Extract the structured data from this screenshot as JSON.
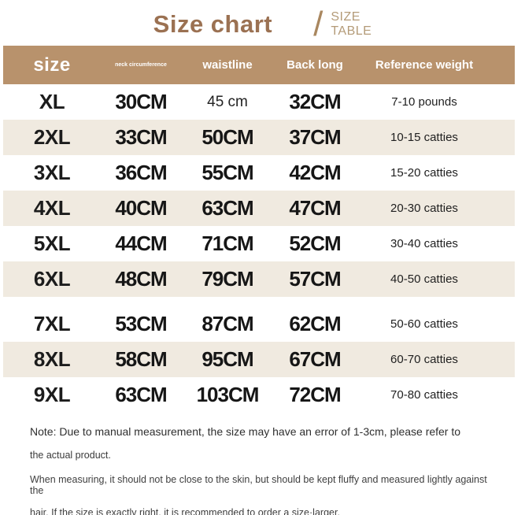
{
  "page": {
    "title": "Size chart",
    "slash": "/",
    "subtitle_line1": "SIZE",
    "subtitle_line2": "TABLE"
  },
  "colors": {
    "title_brown": "#9b7152",
    "subtitle_tan": "#b49b78",
    "header_bg": "#b8926c",
    "header_text": "#ffffff",
    "row_alt_bg": "#f0eae0",
    "data_text": "#161616"
  },
  "table": {
    "headers": {
      "size": "size",
      "neck": "neck circumference",
      "waistline": "waistline",
      "back_long": "Back long",
      "reference_weight": "Reference weight"
    },
    "rows": [
      {
        "size": "XL",
        "neck": "30CM",
        "waistline": "45 cm",
        "back_long": "32CM",
        "weight": "7-10 pounds"
      },
      {
        "size": "2XL",
        "neck": "33CM",
        "waistline": "50CM",
        "back_long": "37CM",
        "weight": "10-15 catties"
      },
      {
        "size": "3XL",
        "neck": "36CM",
        "waistline": "55CM",
        "back_long": "42CM",
        "weight": "15-20 catties"
      },
      {
        "size": "4XL",
        "neck": "40CM",
        "waistline": "63CM",
        "back_long": "47CM",
        "weight": "20-30 catties"
      },
      {
        "size": "5XL",
        "neck": "44CM",
        "waistline": "71CM",
        "back_long": "52CM",
        "weight": "30-40 catties"
      },
      {
        "size": "6XL",
        "neck": "48CM",
        "waistline": "79CM",
        "back_long": "57CM",
        "weight": "40-50 catties"
      },
      {
        "size": "7XL",
        "neck": "53CM",
        "waistline": "87CM",
        "back_long": "62CM",
        "weight": "50-60 catties"
      },
      {
        "size": "8XL",
        "neck": "58CM",
        "waistline": "95CM",
        "back_long": "67CM",
        "weight": "60-70 catties"
      },
      {
        "size": "9XL",
        "neck": "63CM",
        "waistline": "103CM",
        "back_long": "72CM",
        "weight": "70-80 catties"
      }
    ]
  },
  "notes": {
    "line1": "Note: Due to manual measurement, the size may have an error of 1-3cm, please refer to",
    "line2": "the actual product.",
    "line3": "When measuring, it should not be close to the skin, but should be kept fluffy and measured lightly against the",
    "line4": "hair. If the size is exactly right, it is recommended to order a size·larger."
  }
}
